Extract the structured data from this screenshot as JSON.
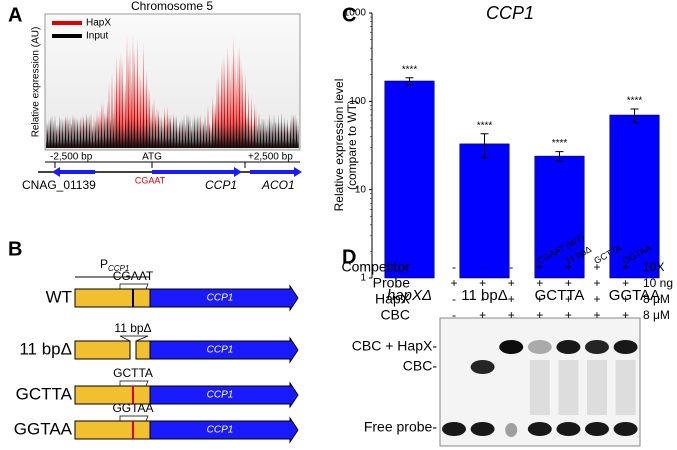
{
  "panel_letters": [
    "A",
    "B",
    "C",
    "D"
  ],
  "panel_a": {
    "title": "Chromosome 5",
    "ylabel": "Relative expression (AU)",
    "legend": [
      {
        "name": "HapX",
        "color": "#e00000"
      },
      {
        "name": "Input",
        "color": "#000000"
      }
    ],
    "positions": [
      "-2,500 bp",
      "ATG",
      "+2,500 bp"
    ],
    "genes": [
      "CNAG_01139",
      "CCP1",
      "ACO1"
    ],
    "motif": "CGAAT"
  },
  "panel_b": {
    "promoter": "P",
    "promoter_sub": "CCP1",
    "gene": "CCP1",
    "constructs": [
      {
        "name": "WT",
        "site": "CGAAT"
      },
      {
        "name": "11 bpΔ",
        "site": "11 bpΔ"
      },
      {
        "name": "GCTTA",
        "site": "GCTTA"
      },
      {
        "name": "GGTAA",
        "site": "GGTAA"
      }
    ]
  },
  "chart_data": {
    "type": "bar",
    "title": "CCP1",
    "ylabel": [
      "Relative expression level",
      "(compare to WT)"
    ],
    "categories": [
      "hapXΔ",
      "11 bpΔ",
      "GCTTA",
      "GGTAA"
    ],
    "values": [
      170,
      33,
      24,
      70
    ],
    "errors": [
      15,
      10,
      3,
      12
    ],
    "annotations": [
      "****",
      "****",
      "****",
      "****"
    ],
    "color": "#0000ff",
    "log_y": true,
    "ylim": [
      1,
      1000
    ],
    "yticks": [
      1,
      10,
      100,
      1000
    ]
  },
  "panel_d": {
    "competitors": [
      "CGAAT (WT)",
      "11 bpΔ",
      "GCTTA",
      "GGTAA"
    ],
    "rows": [
      {
        "label": "Competitor",
        "signs": [
          "-",
          "-",
          "-",
          "+",
          "+",
          "+",
          "+"
        ],
        "amount": "10X"
      },
      {
        "label": "Probe",
        "signs": [
          "+",
          "+",
          "+",
          "+",
          "+",
          "+",
          "+"
        ],
        "amount": "10 ng"
      },
      {
        "label": "HapX",
        "signs": [
          "-",
          "-",
          "+",
          "+",
          "+",
          "+",
          "+"
        ],
        "amount": "8 μM"
      },
      {
        "label": "CBC",
        "signs": [
          "-",
          "+",
          "+",
          "+",
          "+",
          "+",
          "+"
        ],
        "amount": "8 μM"
      }
    ],
    "bands": [
      "CBC + HapX-",
      "CBC-",
      "Free probe-"
    ]
  }
}
